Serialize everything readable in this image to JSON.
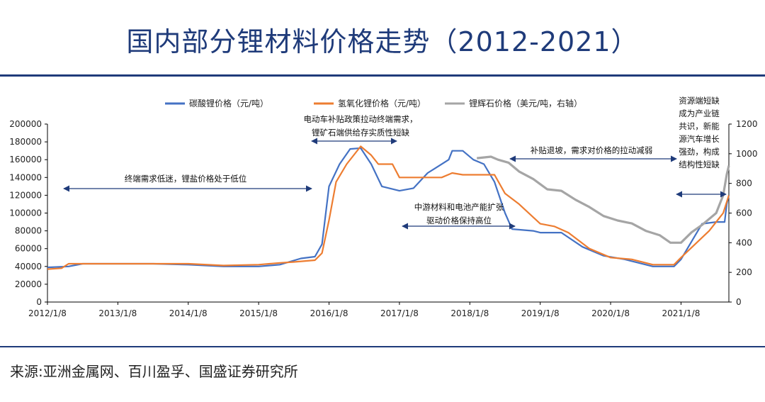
{
  "title": "国内部分锂材料价格走势（2012-2021）",
  "source": "来源:亚洲金属网、百川盈孚、国盛证券研究所",
  "colors": {
    "title": "#1f3b7a",
    "s1": "#4472c4",
    "s2": "#ed7d31",
    "s3": "#a5a5a5",
    "axis": "#000000",
    "arrow": "#1f3b7a"
  },
  "chart_data": {
    "type": "line",
    "x_ticks": [
      "2012/1/8",
      "2013/1/8",
      "2014/1/8",
      "2015/1/8",
      "2016/1/8",
      "2017/1/8",
      "2018/1/8",
      "2019/1/8",
      "2020/1/8",
      "2021/1/8"
    ],
    "y_left_ticks": [
      "0",
      "20000",
      "40000",
      "60000",
      "80000",
      "100000",
      "120000",
      "140000",
      "160000",
      "180000",
      "200000"
    ],
    "y_right_ticks": [
      "0",
      "200",
      "400",
      "600",
      "800",
      "1000",
      "1200"
    ],
    "ylim_left": [
      0,
      200000
    ],
    "ylim_right": [
      0,
      1200
    ],
    "grid": false,
    "legend_position": "top",
    "series": [
      {
        "name": "碳酸锂价格（元/吨）",
        "axis": "left",
        "color": "#4472c4",
        "points": [
          [
            2012.0,
            39000
          ],
          [
            2012.3,
            40000
          ],
          [
            2012.5,
            43000
          ],
          [
            2013.0,
            43000
          ],
          [
            2013.5,
            43000
          ],
          [
            2014.0,
            42000
          ],
          [
            2014.5,
            40000
          ],
          [
            2015.0,
            40000
          ],
          [
            2015.3,
            42000
          ],
          [
            2015.6,
            49000
          ],
          [
            2015.8,
            51000
          ],
          [
            2015.9,
            65000
          ],
          [
            2016.0,
            130000
          ],
          [
            2016.15,
            155000
          ],
          [
            2016.3,
            172000
          ],
          [
            2016.45,
            173000
          ],
          [
            2016.6,
            155000
          ],
          [
            2016.75,
            130000
          ],
          [
            2017.0,
            125000
          ],
          [
            2017.2,
            128000
          ],
          [
            2017.4,
            145000
          ],
          [
            2017.5,
            150000
          ],
          [
            2017.7,
            160000
          ],
          [
            2017.75,
            170000
          ],
          [
            2017.9,
            170000
          ],
          [
            2018.05,
            160000
          ],
          [
            2018.2,
            155000
          ],
          [
            2018.35,
            135000
          ],
          [
            2018.5,
            100000
          ],
          [
            2018.6,
            82000
          ],
          [
            2018.9,
            80000
          ],
          [
            2019.0,
            78000
          ],
          [
            2019.3,
            78000
          ],
          [
            2019.6,
            62000
          ],
          [
            2019.9,
            52000
          ],
          [
            2020.2,
            48000
          ],
          [
            2020.4,
            44000
          ],
          [
            2020.6,
            40000
          ],
          [
            2020.9,
            40000
          ],
          [
            2021.0,
            48000
          ],
          [
            2021.15,
            68000
          ],
          [
            2021.3,
            88000
          ],
          [
            2021.5,
            90000
          ],
          [
            2021.62,
            90000
          ],
          [
            2021.65,
            110000
          ],
          [
            2021.68,
            120000
          ]
        ]
      },
      {
        "name": "氢氧化锂价格（元/吨）",
        "axis": "left",
        "color": "#ed7d31",
        "points": [
          [
            2012.0,
            37000
          ],
          [
            2012.2,
            38000
          ],
          [
            2012.3,
            43000
          ],
          [
            2013.0,
            43000
          ],
          [
            2014.0,
            43000
          ],
          [
            2014.5,
            41000
          ],
          [
            2015.0,
            42000
          ],
          [
            2015.3,
            44000
          ],
          [
            2015.5,
            45000
          ],
          [
            2015.8,
            47000
          ],
          [
            2015.9,
            55000
          ],
          [
            2016.0,
            92000
          ],
          [
            2016.1,
            135000
          ],
          [
            2016.25,
            155000
          ],
          [
            2016.45,
            175000
          ],
          [
            2016.6,
            165000
          ],
          [
            2016.7,
            155000
          ],
          [
            2016.9,
            155000
          ],
          [
            2017.0,
            140000
          ],
          [
            2017.3,
            140000
          ],
          [
            2017.6,
            140000
          ],
          [
            2017.75,
            145000
          ],
          [
            2017.9,
            143000
          ],
          [
            2018.1,
            143000
          ],
          [
            2018.35,
            143000
          ],
          [
            2018.5,
            122000
          ],
          [
            2018.7,
            110000
          ],
          [
            2019.0,
            88000
          ],
          [
            2019.2,
            85000
          ],
          [
            2019.4,
            78000
          ],
          [
            2019.7,
            60000
          ],
          [
            2020.0,
            50000
          ],
          [
            2020.3,
            48000
          ],
          [
            2020.6,
            42000
          ],
          [
            2020.9,
            42000
          ],
          [
            2021.0,
            50000
          ],
          [
            2021.2,
            65000
          ],
          [
            2021.4,
            80000
          ],
          [
            2021.6,
            100000
          ],
          [
            2021.68,
            120000
          ]
        ]
      },
      {
        "name": "锂辉石价格（美元/吨，右轴）",
        "axis": "right",
        "color": "#a5a5a5",
        "points": [
          [
            2018.1,
            970
          ],
          [
            2018.3,
            980
          ],
          [
            2018.4,
            960
          ],
          [
            2018.55,
            940
          ],
          [
            2018.7,
            880
          ],
          [
            2018.9,
            830
          ],
          [
            2019.1,
            760
          ],
          [
            2019.3,
            750
          ],
          [
            2019.5,
            690
          ],
          [
            2019.7,
            640
          ],
          [
            2019.9,
            580
          ],
          [
            2020.1,
            550
          ],
          [
            2020.3,
            530
          ],
          [
            2020.5,
            480
          ],
          [
            2020.7,
            450
          ],
          [
            2020.85,
            400
          ],
          [
            2021.0,
            400
          ],
          [
            2021.15,
            470
          ],
          [
            2021.3,
            520
          ],
          [
            2021.5,
            600
          ],
          [
            2021.6,
            720
          ],
          [
            2021.65,
            860
          ],
          [
            2021.68,
            920
          ]
        ]
      }
    ],
    "annotations": [
      {
        "id": "a1",
        "lines": [
          "终端需求低迷，锂盐价格处于低位"
        ]
      },
      {
        "id": "a2",
        "lines": [
          "电动车补贴政策拉动终端需求，",
          "锂矿石端供给存实质性短缺"
        ]
      },
      {
        "id": "a3",
        "lines": [
          "中游材料和电池产能扩张",
          "驱动价格保持高位"
        ]
      },
      {
        "id": "a4",
        "lines": [
          "补贴退坡，需求对价格的拉动减弱"
        ]
      },
      {
        "id": "a5",
        "lines": [
          "资源端短缺",
          "成为产业链",
          "共识，新能",
          "源汽车增长",
          "强劲，构成",
          "结构性短缺"
        ]
      }
    ]
  }
}
